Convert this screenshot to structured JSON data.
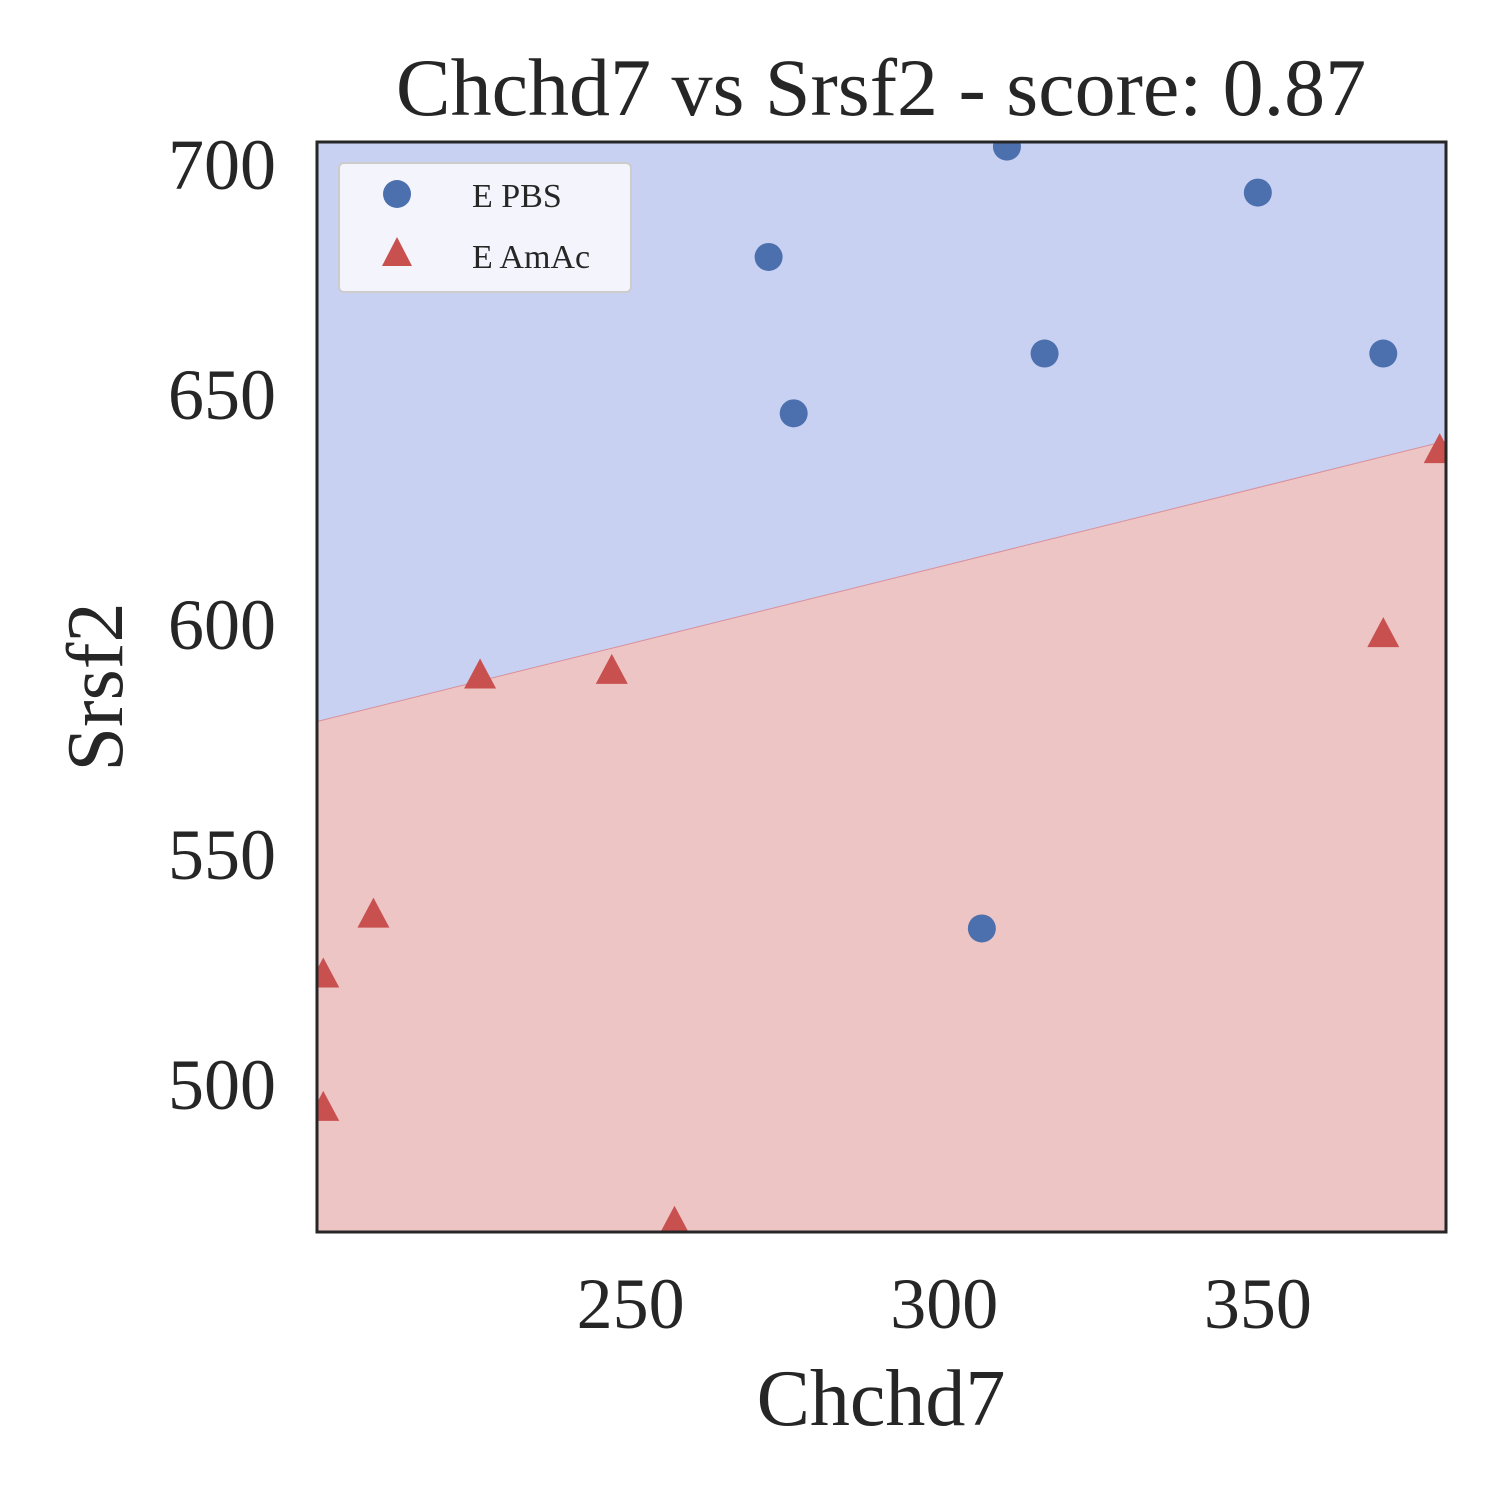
{
  "chart_data": {
    "type": "scatter",
    "title": "Chchd7 vs Srsf2 - score: 0.87",
    "xlabel": "Chchd7",
    "ylabel": "Srsf2",
    "xlim": [
      200,
      380
    ],
    "ylim": [
      468,
      705
    ],
    "xticks": [
      250,
      300,
      350
    ],
    "yticks": [
      500,
      550,
      600,
      650,
      700
    ],
    "grid": false,
    "legend_position": "top-left",
    "decision_boundary": {
      "points": [
        [
          200,
          579
        ],
        [
          380,
          640
        ]
      ],
      "upper_class": "E PBS",
      "lower_class": "E AmAc",
      "upper_color": "#c8d1f1",
      "lower_color": "#eec5c5"
    },
    "series": [
      {
        "name": "E PBS",
        "marker": "circle",
        "color": "#4c6fae",
        "points": [
          [
            272,
            680
          ],
          [
            276,
            646
          ],
          [
            306,
            534
          ],
          [
            310,
            704
          ],
          [
            316,
            659
          ],
          [
            350,
            694
          ],
          [
            370,
            659
          ]
        ]
      },
      {
        "name": "E AmAc",
        "marker": "triangle",
        "color": "#c8504f",
        "points": [
          [
            201,
            495
          ],
          [
            201,
            524
          ],
          [
            209,
            537
          ],
          [
            226,
            589
          ],
          [
            247,
            590
          ],
          [
            257,
            470
          ],
          [
            370,
            598
          ],
          [
            379,
            638
          ]
        ]
      }
    ]
  }
}
